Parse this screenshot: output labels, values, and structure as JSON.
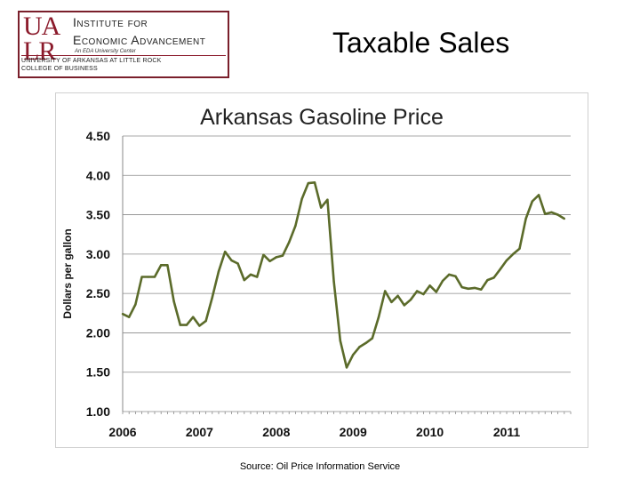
{
  "logo": {
    "ua_line1": "UA",
    "ua_line2": "LR",
    "line1": "Institute for",
    "line2": "Economic Advancement",
    "sub": "An EDA University Center",
    "univ": "UNIVERSITY OF ARKANSAS AT LITTLE ROCK",
    "college": "COLLEGE OF BUSINESS",
    "brand_color": "#8b1a2b"
  },
  "slide_title": "Taxable Sales",
  "source": "Source: Oil Price Information Service",
  "chart_data": {
    "type": "line",
    "title": "Arkansas Gasoline Price",
    "ylabel": "Dollars per gallon",
    "xlabel": "",
    "ylim": [
      1.0,
      4.5
    ],
    "yticks": [
      "1.00",
      "1.50",
      "2.00",
      "2.50",
      "3.00",
      "3.50",
      "4.00",
      "4.50"
    ],
    "xticks": [
      "2006",
      "2007",
      "2008",
      "2009",
      "2010",
      "2011"
    ],
    "grid": true,
    "line_color": "#5b6b2a",
    "series": [
      {
        "x": [
          2006.0,
          2006.083,
          2006.167,
          2006.25,
          2006.333,
          2006.417,
          2006.5,
          2006.583,
          2006.667,
          2006.75,
          2006.833,
          2006.917,
          2007.0,
          2007.083,
          2007.167,
          2007.25,
          2007.333,
          2007.417,
          2007.5,
          2007.583,
          2007.667,
          2007.75,
          2007.833,
          2007.917,
          2008.0,
          2008.083,
          2008.167,
          2008.25,
          2008.333,
          2008.417,
          2008.5,
          2008.583,
          2008.667,
          2008.75,
          2008.833,
          2008.917,
          2009.0,
          2009.083,
          2009.167,
          2009.25,
          2009.333,
          2009.417,
          2009.5,
          2009.583,
          2009.667,
          2009.75,
          2009.833,
          2009.917,
          2010.0,
          2010.083,
          2010.167,
          2010.25,
          2010.333,
          2010.417,
          2010.5,
          2010.583,
          2010.667,
          2010.75,
          2010.833,
          2010.917,
          2011.0,
          2011.083,
          2011.167,
          2011.25,
          2011.333,
          2011.417,
          2011.5,
          2011.583,
          2011.667,
          2011.75
        ],
        "values": [
          2.24,
          2.2,
          2.36,
          2.71,
          2.71,
          2.71,
          2.86,
          2.86,
          2.4,
          2.1,
          2.1,
          2.2,
          2.09,
          2.15,
          2.45,
          2.78,
          3.03,
          2.92,
          2.88,
          2.67,
          2.74,
          2.71,
          2.99,
          2.91,
          2.96,
          2.98,
          3.15,
          3.36,
          3.7,
          3.9,
          3.91,
          3.59,
          3.69,
          2.65,
          1.9,
          1.56,
          1.72,
          1.82,
          1.87,
          1.93,
          2.2,
          2.53,
          2.39,
          2.47,
          2.35,
          2.42,
          2.53,
          2.49,
          2.6,
          2.52,
          2.66,
          2.74,
          2.72,
          2.58,
          2.56,
          2.57,
          2.55,
          2.67,
          2.7,
          2.81,
          2.92,
          3.0,
          3.07,
          3.45,
          3.67,
          3.75,
          3.51,
          3.53,
          3.5,
          3.45
        ]
      }
    ]
  }
}
